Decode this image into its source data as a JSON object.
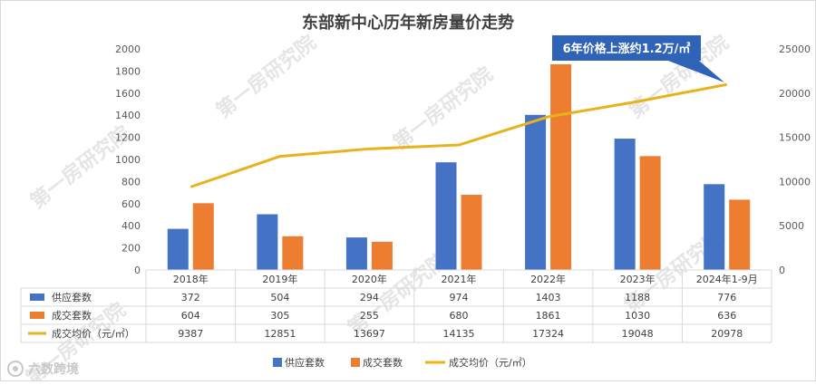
{
  "chart_data": {
    "type": "bar+line",
    "title": "东部新中心历年新房量价走势",
    "categories": [
      "2018年",
      "2019年",
      "2020年",
      "2021年",
      "2022年",
      "2023年",
      "2024年1-9月"
    ],
    "series": [
      {
        "name": "供应套数",
        "type": "bar",
        "axis": "left",
        "color": "#4472C4",
        "values": [
          372,
          504,
          294,
          974,
          1403,
          1188,
          776
        ]
      },
      {
        "name": "成交套数",
        "type": "bar",
        "axis": "left",
        "color": "#ED7D31",
        "values": [
          604,
          305,
          255,
          680,
          1861,
          1030,
          636
        ]
      },
      {
        "name": "成交均价（元/㎡）",
        "type": "line",
        "axis": "right",
        "color": "#E8B21C",
        "values": [
          9387,
          12851,
          13697,
          14135,
          17324,
          19048,
          20978
        ]
      }
    ],
    "y_left": {
      "min": 0,
      "max": 2000,
      "step": 200,
      "ticks": [
        "0",
        "200",
        "400",
        "600",
        "800",
        "1000",
        "1200",
        "1400",
        "1600",
        "1800",
        "2000"
      ]
    },
    "y_right": {
      "min": 0,
      "max": 25000,
      "step": 5000,
      "ticks": [
        "0",
        "5000",
        "10000",
        "15000",
        "20000",
        "25000"
      ]
    },
    "table": {
      "rows": [
        {
          "label": "供应套数",
          "cells": [
            "372",
            "504",
            "294",
            "974",
            "1403",
            "1188",
            "776"
          ]
        },
        {
          "label": "成交套数",
          "cells": [
            "604",
            "305",
            "255",
            "680",
            "1861",
            "1030",
            "636"
          ]
        },
        {
          "label": "成交均价（元/㎡）",
          "cells": [
            "9387",
            "12851",
            "13697",
            "14135",
            "17324",
            "19048",
            "20978"
          ]
        }
      ]
    },
    "callout": "6年价格上涨约1.2万/㎡",
    "legend_position": "bottom",
    "watermark": "第一房研究院",
    "brand": "六数跨境"
  }
}
